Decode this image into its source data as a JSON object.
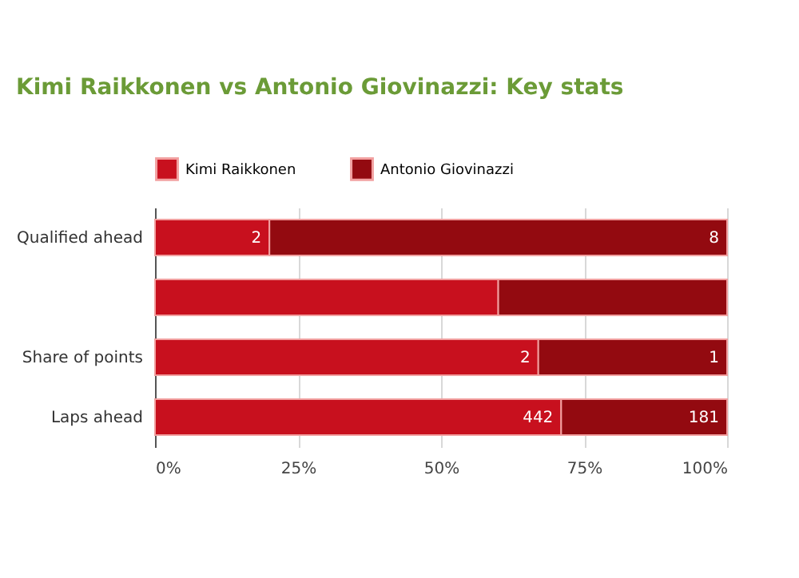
{
  "chart_data": {
    "type": "bar",
    "orientation": "horizontal",
    "stacked": true,
    "title": "Kimi Raikkonen vs Antonio Giovinazzi: Key stats",
    "categories": [
      "Qualified ahead",
      null,
      "Share of points",
      "Laps ahead"
    ],
    "series": [
      {
        "name": "Kimi Raikkonen",
        "color": "#c8101e",
        "values": [
          20,
          60,
          67,
          71
        ]
      },
      {
        "name": "Antonio Giovinazzi",
        "color": "#930a10",
        "values": [
          80,
          40,
          33,
          29
        ]
      }
    ],
    "annotations": [
      {
        "text": "2",
        "x": 20,
        "y": "Qualified ahead"
      },
      {
        "text": "8",
        "x": 100,
        "y": "Qualified ahead"
      },
      {
        "text": "2",
        "x": 67,
        "y": "Share of points"
      },
      {
        "text": "1",
        "x": 100,
        "y": "Share of points"
      },
      {
        "text": "442",
        "x": 71,
        "y": "Laps ahead"
      },
      {
        "text": "181",
        "x": 100,
        "y": "Laps ahead"
      }
    ],
    "xlim": [
      0,
      100
    ],
    "xticks": [
      {
        "value": 0,
        "label": "0%"
      },
      {
        "value": 25,
        "label": "25%"
      },
      {
        "value": 50,
        "label": "50%"
      },
      {
        "value": 75,
        "label": "75%"
      },
      {
        "value": 100,
        "label": "100%"
      }
    ],
    "grid": "x",
    "legend": "top"
  }
}
